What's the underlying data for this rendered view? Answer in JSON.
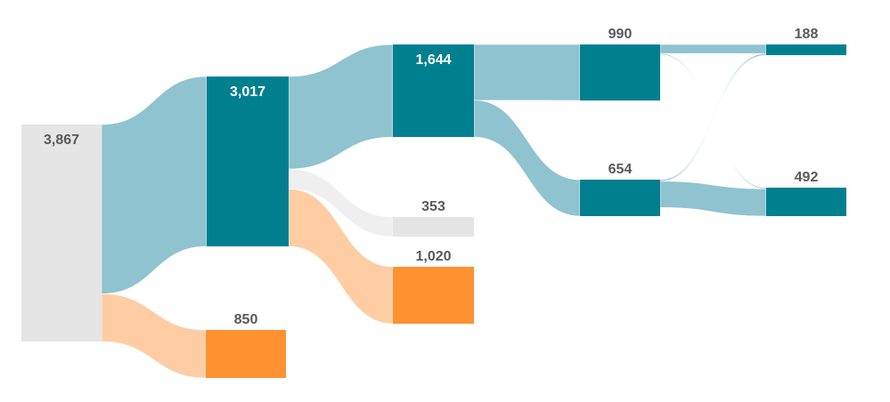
{
  "colors": {
    "teal_node": "#00808f",
    "teal_link": "#8fc3cf",
    "orange_node": "#ff9130",
    "orange_link": "#fecda4",
    "grey_node": "#e5e5e5",
    "grey_link": "#efefef",
    "label_dark": "#595959",
    "label_light": "#ffffff"
  },
  "chart_data": {
    "type": "sankey",
    "nodes": [
      {
        "id": "n0",
        "value": 3867,
        "label": "3,867",
        "color": "grey",
        "label_on": "inside",
        "label_color": "dark"
      },
      {
        "id": "n1",
        "value": 3017,
        "label": "3,017",
        "color": "teal",
        "label_on": "inside",
        "label_color": "light"
      },
      {
        "id": "n2",
        "value": 850,
        "label": "850",
        "color": "orange",
        "label_on": "above",
        "label_color": "dark"
      },
      {
        "id": "n3",
        "value": 1644,
        "label": "1,644",
        "color": "teal",
        "label_on": "inside",
        "label_color": "light"
      },
      {
        "id": "n4",
        "value": 353,
        "label": "353",
        "color": "grey",
        "label_on": "above",
        "label_color": "dark"
      },
      {
        "id": "n5",
        "value": 1020,
        "label": "1,020",
        "color": "orange",
        "label_on": "above",
        "label_color": "dark"
      },
      {
        "id": "n6",
        "value": 990,
        "label": "990",
        "color": "teal",
        "label_on": "above",
        "label_color": "dark"
      },
      {
        "id": "n7",
        "value": 654,
        "label": "654",
        "color": "teal",
        "label_on": "above",
        "label_color": "dark"
      },
      {
        "id": "n8",
        "value": 188,
        "label": "188",
        "color": "teal",
        "label_on": "above",
        "label_color": "dark"
      },
      {
        "id": "n9",
        "value": 492,
        "label": "492",
        "color": "teal",
        "label_on": "above",
        "label_color": "dark"
      }
    ],
    "links": [
      {
        "source": "n0",
        "target": "n1",
        "value": 3017,
        "color": "teal"
      },
      {
        "source": "n0",
        "target": "n2",
        "value": 850,
        "color": "orange"
      },
      {
        "source": "n1",
        "target": "n3",
        "value": 1644,
        "color": "teal"
      },
      {
        "source": "n1",
        "target": "n4",
        "value": 353,
        "color": "grey"
      },
      {
        "source": "n1",
        "target": "n5",
        "value": 1020,
        "color": "orange"
      },
      {
        "source": "n3",
        "target": "n6",
        "value": 990,
        "color": "teal"
      },
      {
        "source": "n3",
        "target": "n7",
        "value": 654,
        "color": "teal"
      },
      {
        "source": "n6",
        "target": "n8",
        "value": 160,
        "color": "teal"
      },
      {
        "source": "n6",
        "target": "n9",
        "value": 20,
        "color": "teal"
      },
      {
        "source": "n7",
        "target": "n8",
        "value": 28,
        "color": "teal"
      },
      {
        "source": "n7",
        "target": "n9",
        "value": 472,
        "color": "teal"
      }
    ]
  }
}
